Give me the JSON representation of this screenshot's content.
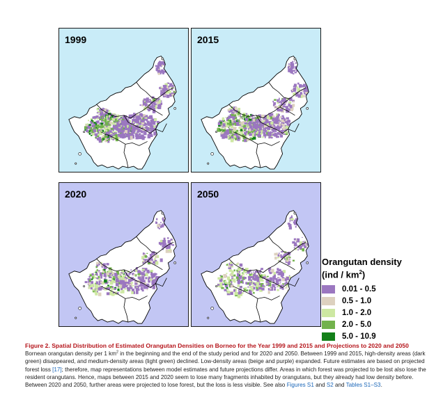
{
  "panels": [
    {
      "id": "1999",
      "label": "1999"
    },
    {
      "id": "2015",
      "label": "2015"
    },
    {
      "id": "2020",
      "label": "2020"
    },
    {
      "id": "2050",
      "label": "2050"
    }
  ],
  "colors": {
    "sea_observed": "#c9ecf8",
    "sea_projected": "#c2c6f4",
    "land": "#ffffff",
    "border": "#000000"
  },
  "legend": {
    "title": "Orangutan density",
    "unit_prefix": "(ind / km",
    "unit_sup": "2",
    "unit_suffix": ")",
    "items": [
      {
        "label": "0.01 - 0.5",
        "color": "#9b77c0"
      },
      {
        "label": "0.5 - 1.0",
        "color": "#ddd1bf"
      },
      {
        "label": "1.0 - 2.0",
        "color": "#cde8a2"
      },
      {
        "label": "2.0 - 5.0",
        "color": "#72b24c"
      },
      {
        "label": "5.0 - 10.9",
        "color": "#138019"
      }
    ]
  },
  "caption": {
    "title": "Figure 2.  Spatial Distribution of Estimated Orangutan Densities on Borneo for the Year 1999 and 2015 and Projections to 2020 and 2050",
    "p1": "Bornean orangutan density per 1 km",
    "p1_sup": "2",
    "p2": " in the beginning and the end of the study period and for 2020 and 2050. Between 1999 and 2015, high-density areas (dark green) disappeared, and medium-density areas (light green) declined. Low-density areas (beige and purple) expanded. Future estimates are based on projected forest loss ",
    "ref": "[17]",
    "p3": "; therefore, map representations between model estimates and future projections differ. Areas in which forest was projected to be lost also lose the resident orangutans. Hence, maps between 2015 and 2020 seem to lose many fragments inhabited by orangutans, but they already had low density before. Between 2020 and 2050, further areas were projected to lose forest, but the loss is less visible. See also ",
    "link1": "Figures S1",
    "and1": " and ",
    "link2": "S2",
    "and2": " and ",
    "link3": "Tables S1–S3",
    "end": "."
  }
}
